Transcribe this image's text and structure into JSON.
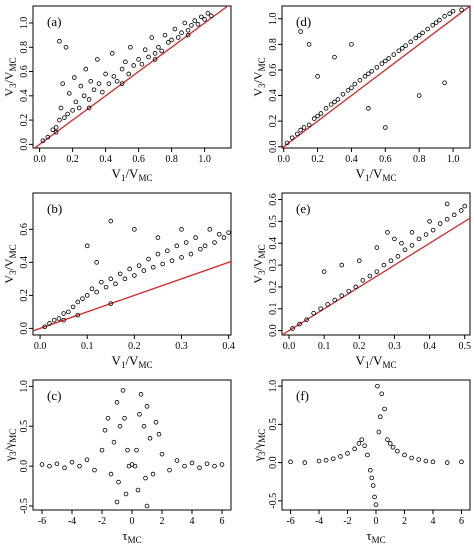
{
  "chart_data": [
    {
      "id": "a",
      "type": "scatter",
      "panel_label": "(a)",
      "xlabel_main": "V",
      "xlabel_sub": "1",
      "xlabel_mid": "/V",
      "xlabel_sub2": "MC",
      "ylabel_main": "V",
      "ylabel_sub": "3",
      "ylabel_mid": "/V",
      "ylabel_sub2": "MC",
      "xlim": [
        -0.04,
        1.16
      ],
      "ylim": [
        -0.03,
        1.14
      ],
      "xticks": [
        0.0,
        0.2,
        0.4,
        0.6,
        0.8,
        1.0
      ],
      "xtick_labels": [
        "0.0",
        "0.2",
        "0.4",
        "0.6",
        "0.8",
        "1.0"
      ],
      "yticks": [
        0.0,
        0.2,
        0.4,
        0.6,
        0.8,
        1.0
      ],
      "ytick_labels": [
        "0.0",
        "0.2",
        "0.4",
        "0.6",
        "0.8",
        "1.0"
      ],
      "reference_line": "y = x",
      "reference_color": "#d62728",
      "grid": false,
      "points": [
        [
          0.02,
          0.03
        ],
        [
          0.05,
          0.06
        ],
        [
          0.08,
          0.12
        ],
        [
          0.1,
          0.14
        ],
        [
          0.12,
          0.2
        ],
        [
          0.13,
          0.3
        ],
        [
          0.14,
          0.5
        ],
        [
          0.15,
          0.22
        ],
        [
          0.17,
          0.25
        ],
        [
          0.18,
          0.42
        ],
        [
          0.2,
          0.28
        ],
        [
          0.21,
          0.55
        ],
        [
          0.22,
          0.35
        ],
        [
          0.24,
          0.3
        ],
        [
          0.25,
          0.48
        ],
        [
          0.27,
          0.4
        ],
        [
          0.28,
          0.62
        ],
        [
          0.3,
          0.37
        ],
        [
          0.31,
          0.52
        ],
        [
          0.33,
          0.45
        ],
        [
          0.35,
          0.7
        ],
        [
          0.36,
          0.5
        ],
        [
          0.38,
          0.43
        ],
        [
          0.4,
          0.58
        ],
        [
          0.42,
          0.5
        ],
        [
          0.44,
          0.75
        ],
        [
          0.45,
          0.56
        ],
        [
          0.47,
          0.52
        ],
        [
          0.5,
          0.62
        ],
        [
          0.52,
          0.68
        ],
        [
          0.54,
          0.58
        ],
        [
          0.55,
          0.8
        ],
        [
          0.57,
          0.65
        ],
        [
          0.6,
          0.7
        ],
        [
          0.62,
          0.66
        ],
        [
          0.64,
          0.78
        ],
        [
          0.66,
          0.72
        ],
        [
          0.68,
          0.88
        ],
        [
          0.7,
          0.75
        ],
        [
          0.72,
          0.8
        ],
        [
          0.74,
          0.77
        ],
        [
          0.76,
          0.9
        ],
        [
          0.78,
          0.84
        ],
        [
          0.8,
          0.86
        ],
        [
          0.82,
          0.95
        ],
        [
          0.84,
          0.88
        ],
        [
          0.86,
          0.92
        ],
        [
          0.88,
          1.0
        ],
        [
          0.9,
          0.94
        ],
        [
          0.92,
          0.98
        ],
        [
          0.94,
          1.02
        ],
        [
          0.96,
          0.99
        ],
        [
          0.98,
          1.05
        ],
        [
          1.0,
          1.03
        ],
        [
          1.02,
          1.08
        ],
        [
          1.04,
          1.06
        ],
        [
          0.12,
          0.85
        ],
        [
          0.16,
          0.8
        ],
        [
          0.1,
          0.1
        ],
        [
          0.3,
          0.3
        ],
        [
          0.5,
          0.5
        ],
        [
          0.7,
          0.7
        ],
        [
          0.9,
          0.9
        ]
      ]
    },
    {
      "id": "b",
      "type": "scatter",
      "panel_label": "(b)",
      "xlabel_main": "V",
      "xlabel_sub": "1",
      "xlabel_mid": "/V",
      "xlabel_sub2": "MC",
      "ylabel_main": "V",
      "ylabel_sub": "3",
      "ylabel_mid": "/V",
      "ylabel_sub2": "MC",
      "xlim": [
        -0.015,
        0.405
      ],
      "ylim": [
        -0.04,
        0.82
      ],
      "xticks": [
        0.0,
        0.1,
        0.2,
        0.3,
        0.4
      ],
      "xtick_labels": [
        "0.0",
        "0.1",
        "0.2",
        "0.3",
        "0.4"
      ],
      "yticks": [
        0.0,
        0.2,
        0.4,
        0.6
      ],
      "ytick_labels": [
        "0.0",
        "0.2",
        "0.4",
        "0.6"
      ],
      "reference_line": "y = x",
      "reference_color": "#d62728",
      "grid": false,
      "points": [
        [
          0.01,
          0.01
        ],
        [
          0.02,
          0.03
        ],
        [
          0.03,
          0.05
        ],
        [
          0.04,
          0.06
        ],
        [
          0.05,
          0.09
        ],
        [
          0.06,
          0.1
        ],
        [
          0.07,
          0.13
        ],
        [
          0.08,
          0.16
        ],
        [
          0.09,
          0.18
        ],
        [
          0.1,
          0.2
        ],
        [
          0.11,
          0.24
        ],
        [
          0.12,
          0.22
        ],
        [
          0.13,
          0.28
        ],
        [
          0.14,
          0.25
        ],
        [
          0.15,
          0.3
        ],
        [
          0.16,
          0.27
        ],
        [
          0.17,
          0.33
        ],
        [
          0.18,
          0.3
        ],
        [
          0.19,
          0.36
        ],
        [
          0.2,
          0.32
        ],
        [
          0.21,
          0.38
        ],
        [
          0.22,
          0.35
        ],
        [
          0.23,
          0.42
        ],
        [
          0.24,
          0.37
        ],
        [
          0.25,
          0.45
        ],
        [
          0.26,
          0.39
        ],
        [
          0.27,
          0.47
        ],
        [
          0.28,
          0.41
        ],
        [
          0.29,
          0.5
        ],
        [
          0.3,
          0.43
        ],
        [
          0.31,
          0.52
        ],
        [
          0.32,
          0.45
        ],
        [
          0.33,
          0.55
        ],
        [
          0.34,
          0.48
        ],
        [
          0.35,
          0.5
        ],
        [
          0.36,
          0.6
        ],
        [
          0.37,
          0.52
        ],
        [
          0.38,
          0.57
        ],
        [
          0.39,
          0.55
        ],
        [
          0.4,
          0.58
        ],
        [
          0.1,
          0.5
        ],
        [
          0.15,
          0.65
        ],
        [
          0.2,
          0.6
        ],
        [
          0.12,
          0.4
        ],
        [
          0.25,
          0.55
        ],
        [
          0.3,
          0.6
        ],
        [
          0.05,
          0.05
        ],
        [
          0.08,
          0.08
        ],
        [
          0.15,
          0.15
        ]
      ]
    },
    {
      "id": "c",
      "type": "scatter",
      "panel_label": "(c)",
      "xlabel_main": "τ",
      "xlabel_sub": "MC",
      "xlabel_mid": "",
      "xlabel_sub2": "",
      "ylabel_main": "γ",
      "ylabel_sub": "3",
      "ylabel_mid": "/γ",
      "ylabel_sub2": "MC",
      "xlim": [
        -6.6,
        6.6
      ],
      "ylim": [
        -0.55,
        1.08
      ],
      "xticks": [
        -6,
        -4,
        -2,
        0,
        2,
        4,
        6
      ],
      "xtick_labels": [
        "-6",
        "-4",
        "-2",
        "0",
        "2",
        "4",
        "6"
      ],
      "yticks": [
        -0.5,
        0.0,
        0.5,
        1.0
      ],
      "ytick_labels": [
        "-0.5",
        "0.0",
        "0.5",
        "1.0"
      ],
      "reference_line": "",
      "reference_color": "",
      "grid": false,
      "points": [
        [
          -6.0,
          0.02
        ],
        [
          -5.5,
          0.0
        ],
        [
          -5.0,
          0.03
        ],
        [
          -4.5,
          -0.02
        ],
        [
          -4.0,
          0.05
        ],
        [
          -3.5,
          0.0
        ],
        [
          -3.0,
          0.08
        ],
        [
          -2.5,
          -0.05
        ],
        [
          -2.0,
          0.2
        ],
        [
          -1.8,
          0.45
        ],
        [
          -1.6,
          0.6
        ],
        [
          -1.4,
          -0.1
        ],
        [
          -1.2,
          0.3
        ],
        [
          -1.0,
          0.8
        ],
        [
          -0.9,
          -0.2
        ],
        [
          -0.8,
          0.5
        ],
        [
          -0.6,
          0.95
        ],
        [
          -0.4,
          -0.35
        ],
        [
          -0.3,
          0.2
        ],
        [
          -0.2,
          0.0
        ],
        [
          0.0,
          0.02
        ],
        [
          0.2,
          0.0
        ],
        [
          0.3,
          0.2
        ],
        [
          0.4,
          -0.3
        ],
        [
          0.6,
          0.9
        ],
        [
          0.8,
          0.5
        ],
        [
          0.9,
          -0.15
        ],
        [
          1.0,
          0.75
        ],
        [
          1.2,
          0.35
        ],
        [
          1.4,
          -0.1
        ],
        [
          1.6,
          0.55
        ],
        [
          1.8,
          0.4
        ],
        [
          2.0,
          0.15
        ],
        [
          2.5,
          -0.05
        ],
        [
          3.0,
          0.07
        ],
        [
          3.5,
          0.0
        ],
        [
          4.0,
          0.04
        ],
        [
          4.5,
          -0.02
        ],
        [
          5.0,
          0.03
        ],
        [
          5.5,
          0.0
        ],
        [
          6.0,
          0.02
        ],
        [
          -1.0,
          -0.45
        ],
        [
          1.0,
          -0.5
        ],
        [
          0.5,
          0.65
        ],
        [
          -0.5,
          0.6
        ]
      ]
    },
    {
      "id": "d",
      "type": "scatter",
      "panel_label": "(d)",
      "xlabel_main": "V",
      "xlabel_sub": "1",
      "xlabel_mid": "/V",
      "xlabel_sub2": "MC",
      "ylabel_main": "V",
      "ylabel_sub": "3",
      "ylabel_mid": "/V",
      "ylabel_sub2": "MC",
      "xlim": [
        -0.01,
        1.1
      ],
      "ylim": [
        -0.01,
        1.1
      ],
      "xticks": [
        0.0,
        0.2,
        0.4,
        0.6,
        0.8,
        1.0
      ],
      "xtick_labels": [
        "0.0",
        "0.2",
        "0.4",
        "0.6",
        "0.8",
        "1.0"
      ],
      "yticks": [
        0.0,
        0.2,
        0.4,
        0.6,
        0.8,
        1.0
      ],
      "ytick_labels": [
        "0.0",
        "0.2",
        "0.4",
        "0.6",
        "0.8",
        "1.0"
      ],
      "reference_line": "y = x",
      "reference_color": "#d62728",
      "grid": false,
      "points": [
        [
          0.02,
          0.03
        ],
        [
          0.05,
          0.07
        ],
        [
          0.08,
          0.1
        ],
        [
          0.1,
          0.13
        ],
        [
          0.12,
          0.15
        ],
        [
          0.15,
          0.17
        ],
        [
          0.18,
          0.22
        ],
        [
          0.2,
          0.24
        ],
        [
          0.22,
          0.26
        ],
        [
          0.25,
          0.3
        ],
        [
          0.28,
          0.33
        ],
        [
          0.3,
          0.35
        ],
        [
          0.32,
          0.37
        ],
        [
          0.35,
          0.41
        ],
        [
          0.38,
          0.44
        ],
        [
          0.4,
          0.46
        ],
        [
          0.42,
          0.49
        ],
        [
          0.45,
          0.52
        ],
        [
          0.48,
          0.55
        ],
        [
          0.5,
          0.57
        ],
        [
          0.52,
          0.59
        ],
        [
          0.55,
          0.62
        ],
        [
          0.58,
          0.65
        ],
        [
          0.6,
          0.67
        ],
        [
          0.62,
          0.69
        ],
        [
          0.65,
          0.72
        ],
        [
          0.68,
          0.75
        ],
        [
          0.7,
          0.77
        ],
        [
          0.72,
          0.79
        ],
        [
          0.75,
          0.82
        ],
        [
          0.78,
          0.85
        ],
        [
          0.8,
          0.87
        ],
        [
          0.82,
          0.89
        ],
        [
          0.85,
          0.92
        ],
        [
          0.88,
          0.95
        ],
        [
          0.9,
          0.97
        ],
        [
          0.92,
          0.99
        ],
        [
          0.95,
          1.02
        ],
        [
          0.98,
          1.04
        ],
        [
          1.0,
          1.06
        ],
        [
          1.05,
          1.07
        ],
        [
          0.1,
          0.9
        ],
        [
          0.2,
          0.55
        ],
        [
          0.3,
          0.7
        ],
        [
          0.5,
          0.3
        ],
        [
          0.6,
          0.15
        ],
        [
          0.8,
          0.4
        ],
        [
          0.15,
          0.8
        ],
        [
          0.95,
          0.5
        ],
        [
          0.4,
          0.8
        ]
      ]
    },
    {
      "id": "e",
      "type": "scatter",
      "panel_label": "(e)",
      "xlabel_main": "V",
      "xlabel_sub": "1",
      "xlabel_mid": "/V",
      "xlabel_sub2": "MC",
      "ylabel_main": "V",
      "ylabel_sub": "3",
      "ylabel_mid": "/V",
      "ylabel_sub2": "MC",
      "xlim": [
        -0.02,
        0.515
      ],
      "ylim": [
        -0.02,
        0.63
      ],
      "xticks": [
        0.0,
        0.1,
        0.2,
        0.3,
        0.4,
        0.5
      ],
      "xtick_labels": [
        "0.0",
        "0.1",
        "0.2",
        "0.3",
        "0.4",
        "0.5"
      ],
      "yticks": [
        0.0,
        0.1,
        0.2,
        0.3,
        0.4,
        0.5,
        0.6
      ],
      "ytick_labels": [
        "0.0",
        "0.1",
        "0.2",
        "0.3",
        "0.4",
        "0.5",
        "0.6"
      ],
      "reference_line": "y = x",
      "reference_color": "#d62728",
      "grid": false,
      "points": [
        [
          0.01,
          0.01
        ],
        [
          0.03,
          0.03
        ],
        [
          0.05,
          0.05
        ],
        [
          0.07,
          0.08
        ],
        [
          0.09,
          0.1
        ],
        [
          0.11,
          0.12
        ],
        [
          0.13,
          0.14
        ],
        [
          0.15,
          0.16
        ],
        [
          0.17,
          0.18
        ],
        [
          0.19,
          0.2
        ],
        [
          0.21,
          0.23
        ],
        [
          0.23,
          0.25
        ],
        [
          0.25,
          0.27
        ],
        [
          0.27,
          0.3
        ],
        [
          0.29,
          0.32
        ],
        [
          0.31,
          0.34
        ],
        [
          0.33,
          0.37
        ],
        [
          0.35,
          0.39
        ],
        [
          0.37,
          0.42
        ],
        [
          0.39,
          0.44
        ],
        [
          0.41,
          0.46
        ],
        [
          0.43,
          0.49
        ],
        [
          0.45,
          0.51
        ],
        [
          0.47,
          0.53
        ],
        [
          0.49,
          0.55
        ],
        [
          0.5,
          0.57
        ],
        [
          0.2,
          0.32
        ],
        [
          0.25,
          0.38
        ],
        [
          0.3,
          0.42
        ],
        [
          0.35,
          0.45
        ],
        [
          0.4,
          0.5
        ],
        [
          0.1,
          0.27
        ],
        [
          0.15,
          0.3
        ],
        [
          0.45,
          0.58
        ],
        [
          0.28,
          0.45
        ],
        [
          0.32,
          0.4
        ]
      ]
    },
    {
      "id": "f",
      "type": "scatter",
      "panel_label": "(f)",
      "xlabel_main": "τ",
      "xlabel_sub": "MC",
      "xlabel_mid": "",
      "xlabel_sub2": "",
      "ylabel_main": "γ",
      "ylabel_sub": "3",
      "ylabel_mid": "/γ",
      "ylabel_sub2": "MC",
      "xlim": [
        -6.6,
        6.6
      ],
      "ylim": [
        -0.62,
        1.08
      ],
      "xticks": [
        -6,
        -4,
        -2,
        0,
        2,
        4,
        6
      ],
      "xtick_labels": [
        "-6",
        "-4",
        "-2",
        "0",
        "2",
        "4",
        "6"
      ],
      "yticks": [
        -0.5,
        0.0,
        0.5,
        1.0
      ],
      "ytick_labels": [
        "-0.5",
        "0.0",
        "0.5",
        "1.0"
      ],
      "reference_line": "",
      "reference_color": "",
      "grid": false,
      "points": [
        [
          -6.0,
          0.01
        ],
        [
          -5.0,
          0.0
        ],
        [
          -4.0,
          0.02
        ],
        [
          -3.5,
          0.03
        ],
        [
          -3.0,
          0.05
        ],
        [
          -2.5,
          0.08
        ],
        [
          -2.0,
          0.12
        ],
        [
          -1.5,
          0.18
        ],
        [
          -1.2,
          0.25
        ],
        [
          -1.0,
          0.3
        ],
        [
          -0.8,
          0.22
        ],
        [
          -0.6,
          0.1
        ],
        [
          -0.4,
          -0.1
        ],
        [
          -0.2,
          -0.3
        ],
        [
          0.0,
          -0.55
        ],
        [
          0.2,
          0.4
        ],
        [
          0.4,
          0.9
        ],
        [
          0.6,
          0.7
        ],
        [
          0.8,
          0.3
        ],
        [
          1.0,
          0.25
        ],
        [
          1.2,
          0.2
        ],
        [
          1.5,
          0.15
        ],
        [
          2.0,
          0.1
        ],
        [
          2.5,
          0.06
        ],
        [
          3.0,
          0.04
        ],
        [
          3.5,
          0.02
        ],
        [
          4.0,
          0.01
        ],
        [
          5.0,
          0.0
        ],
        [
          6.0,
          0.01
        ],
        [
          0.1,
          1.0
        ],
        [
          -0.1,
          -0.45
        ],
        [
          0.3,
          0.6
        ],
        [
          -0.3,
          -0.2
        ]
      ]
    }
  ]
}
